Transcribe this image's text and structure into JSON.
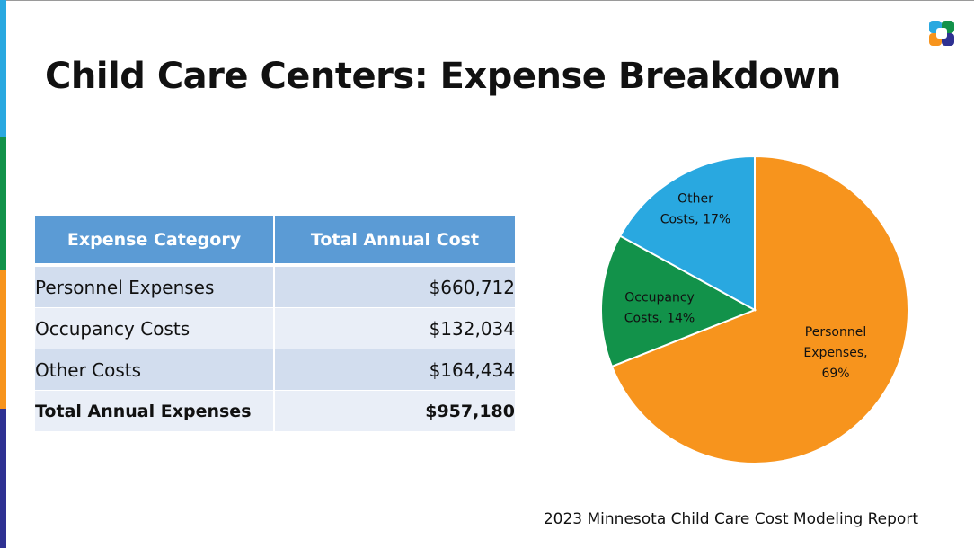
{
  "slide": {
    "title": "Child Care Centers: Expense Breakdown",
    "source": "2023 Minnesota Child Care Cost Modeling Report"
  },
  "colors": {
    "accent_bar": [
      "#29a8e0",
      "#12924a",
      "#f7941d",
      "#2e3192"
    ],
    "logo": [
      "#29a8e0",
      "#12924a",
      "#f7941d",
      "#2e3192"
    ],
    "table_header": "#5b9bd5",
    "table_row_dark": "#d2ddee",
    "table_row_light": "#e9eef7"
  },
  "table": {
    "headers": [
      "Expense Category",
      "Total Annual Cost"
    ],
    "rows": [
      {
        "category": "Personnel Expenses",
        "cost": "$660,712"
      },
      {
        "category": "Occupancy Costs",
        "cost": "$132,034"
      },
      {
        "category": "Other Costs",
        "cost": "$164,434"
      }
    ],
    "total": {
      "category": "Total Annual Expenses",
      "cost": "$957,180"
    }
  },
  "chart_data": {
    "type": "pie",
    "title": "",
    "slices": [
      {
        "label_lines": [
          "Personnel",
          "Expenses,",
          "69%"
        ],
        "value": 69,
        "color": "#f7941d"
      },
      {
        "label_lines": [
          "Occupancy",
          "Costs, 14%"
        ],
        "value": 14,
        "color": "#12924a"
      },
      {
        "label_lines": [
          "Other",
          "Costs, 17%"
        ],
        "value": 17,
        "color": "#29a8e0"
      }
    ],
    "legend": "none",
    "start": "top, clockwise"
  }
}
